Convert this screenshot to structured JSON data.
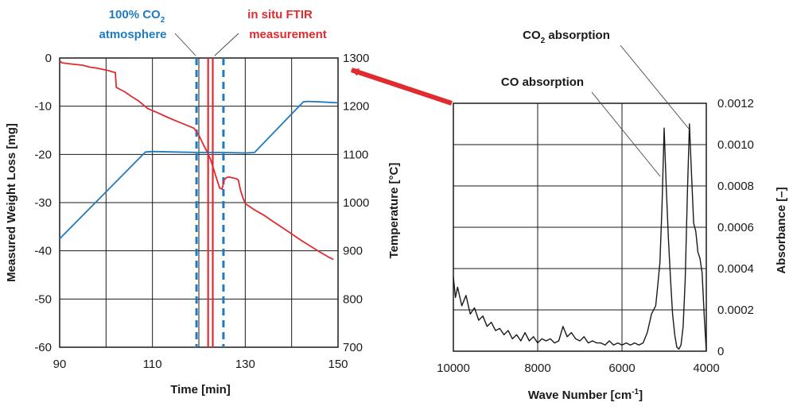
{
  "chart_data": [
    {
      "type": "line",
      "name": "weight-temperature-vs-time",
      "xlabel": "Time [min]",
      "ylabel_left": "Measured Weight Loss [mg]",
      "ylabel_right": "Temperature [°C]",
      "xlim": [
        90,
        150
      ],
      "ylim_left": [
        -60,
        0
      ],
      "ylim_right": [
        700,
        1300
      ],
      "x_ticks": [
        "90",
        "110",
        "130",
        "150"
      ],
      "x_grid": [
        90,
        100,
        110,
        120,
        130,
        140,
        150
      ],
      "y_ticks_left": [
        "0",
        "-10",
        "-20",
        "-30",
        "-40",
        "-50",
        "-60"
      ],
      "y_ticks_right": [
        "1300",
        "1200",
        "1100",
        "1000",
        "900",
        "800",
        "700"
      ],
      "grid": true,
      "series": [
        {
          "name": "Weight loss",
          "axis": "left",
          "color": "#e02b30",
          "x": [
            90.0,
            90.5,
            93.0,
            95.0,
            96.5,
            98.0,
            99.5,
            100.5,
            101.5,
            102.0,
            102.2,
            104.0,
            105.5,
            107.0,
            108.0,
            109.0,
            111.0,
            113.0,
            115.0,
            117.0,
            119.0,
            120.0,
            121.0,
            121.8,
            122.5,
            123.0,
            123.5,
            124.0,
            124.5,
            125.0,
            125.5,
            126.0,
            126.5,
            127.0,
            128.0,
            128.5,
            129.0,
            129.5,
            130.0,
            132.0,
            134.0,
            136.0,
            138.0,
            140.0,
            142.0,
            144.0,
            146.0,
            148.0,
            149.0
          ],
          "y": [
            -0.6,
            -1.0,
            -1.3,
            -1.5,
            -1.9,
            -2.1,
            -2.4,
            -2.6,
            -2.9,
            -3.0,
            -6.1,
            -7.0,
            -8.0,
            -8.9,
            -9.7,
            -10.5,
            -11.3,
            -12.2,
            -13.0,
            -13.8,
            -14.6,
            -16.0,
            -18.0,
            -19.5,
            -21.0,
            -22.5,
            -24.0,
            -25.5,
            -27.0,
            -27.2,
            -25.2,
            -24.8,
            -24.7,
            -24.8,
            -25.0,
            -25.3,
            -27.5,
            -29.0,
            -30.2,
            -31.5,
            -32.6,
            -33.9,
            -35.2,
            -36.5,
            -37.8,
            -39.0,
            -40.2,
            -41.3,
            -41.8
          ]
        },
        {
          "name": "Temperature",
          "axis": "right",
          "color": "#1f7bc1",
          "x": [
            90.0,
            108.5,
            110.0,
            115.0,
            120.0,
            125.0,
            130.0,
            132.0,
            142.5,
            143.5,
            146.0,
            150.0
          ],
          "y": [
            925,
            1105,
            1106,
            1105,
            1104,
            1104,
            1103,
            1104,
            1209,
            1210,
            1209,
            1207
          ]
        }
      ],
      "markers": [
        {
          "name": "co2-start",
          "x": 119.5,
          "style": "dashed",
          "color": "#1f7bc1"
        },
        {
          "name": "co2-end",
          "x": 125.3,
          "style": "dashed",
          "color": "#1f7bc1"
        },
        {
          "name": "ftir-band-left",
          "x": 122.0,
          "style": "solid",
          "color": "#e02b30"
        },
        {
          "name": "ftir-band-right",
          "x": 123.0,
          "style": "solid",
          "color": "#e02b30"
        }
      ],
      "annotations": {
        "co2_line1": "100% CO",
        "co2_sub": "2",
        "co2_line2": "atmosphere",
        "ftir_line1": "in situ FTIR",
        "ftir_line2": "measurement"
      }
    },
    {
      "type": "line",
      "name": "ftir-absorbance-spectrum",
      "xlabel": "Wave Number [cm",
      "xlabel_sup": "-1",
      "xlabel_end": "]",
      "ylabel": "Absorbance [–]",
      "xlim": [
        10000,
        4000
      ],
      "ylim": [
        0,
        0.0012
      ],
      "x_ticks": [
        "10000",
        "8000",
        "6000",
        "4000"
      ],
      "x_grid": [
        10000,
        8000,
        6000,
        4000
      ],
      "y_ticks": [
        "0",
        "0.0002",
        "0.0004",
        "0.0006",
        "0.0008",
        "0.0010",
        "0.0012"
      ],
      "grid": true,
      "series": [
        {
          "name": "Absorbance",
          "color": "#1a1a1a",
          "x": [
            10000,
            9950,
            9900,
            9800,
            9700,
            9600,
            9500,
            9400,
            9300,
            9200,
            9100,
            9000,
            8900,
            8800,
            8700,
            8600,
            8500,
            8400,
            8300,
            8200,
            8100,
            8000,
            7900,
            7800,
            7700,
            7600,
            7500,
            7400,
            7300,
            7200,
            7100,
            7000,
            6900,
            6800,
            6700,
            6600,
            6500,
            6400,
            6300,
            6200,
            6100,
            6000,
            5900,
            5800,
            5700,
            5600,
            5500,
            5400,
            5300,
            5200,
            5150,
            5100,
            5050,
            5000,
            4950,
            4900,
            4850,
            4800,
            4750,
            4700,
            4650,
            4600,
            4550,
            4500,
            4450,
            4400,
            4350,
            4300,
            4250,
            4200,
            4150,
            4100,
            4050,
            4000
          ],
          "y": [
            0.00036,
            0.00026,
            0.00031,
            0.00022,
            0.00027,
            0.00018,
            0.00021,
            0.00015,
            0.00017,
            0.00012,
            0.00014,
            0.0001,
            0.00011,
            8e-05,
            0.0001,
            6e-05,
            8e-05,
            5e-05,
            9e-05,
            5e-05,
            7e-05,
            4e-05,
            6e-05,
            5e-05,
            6e-05,
            4e-05,
            5e-05,
            0.00012,
            7e-05,
            9e-05,
            6e-05,
            5e-05,
            7e-05,
            4e-05,
            5e-05,
            4e-05,
            4e-05,
            3e-05,
            5e-05,
            3e-05,
            4e-05,
            3e-05,
            4e-05,
            3e-05,
            4e-05,
            3e-05,
            4e-05,
            9e-05,
            0.00018,
            0.00022,
            0.00032,
            0.00043,
            0.0007,
            0.00108,
            0.0008,
            0.00055,
            0.00035,
            0.00018,
            8e-05,
            2e-05,
            1e-05,
            3e-05,
            0.00012,
            0.00035,
            0.00076,
            0.0011,
            0.00085,
            0.00062,
            0.00058,
            0.00048,
            0.00045,
            0.00038,
            0.00017,
            0.0
          ]
        }
      ],
      "annotations": {
        "co2_label": "CO",
        "co2_sub": "2",
        "co2_label_end": " absorption",
        "co_label": "CO absorption"
      }
    }
  ]
}
